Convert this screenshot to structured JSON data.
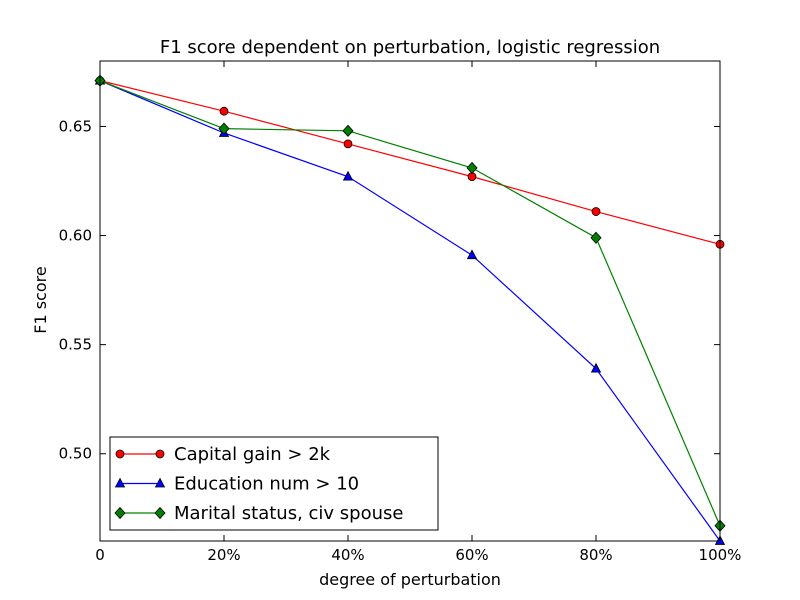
{
  "chart_data": {
    "type": "line",
    "title": "F1 score dependent on perturbation, logistic regression",
    "xlabel": "degree of perturbation",
    "ylabel": "F1 score",
    "x": [
      0,
      20,
      40,
      60,
      80,
      100
    ],
    "x_tick_labels": [
      "0",
      "20%",
      "40%",
      "60%",
      "80%",
      "100%"
    ],
    "xlim": [
      0,
      100
    ],
    "y_ticks": [
      0.5,
      0.55,
      0.6,
      0.65
    ],
    "y_tick_labels": [
      "0.50",
      "0.55",
      "0.60",
      "0.65"
    ],
    "ylim": [
      0.46,
      0.68
    ],
    "grid": false,
    "legend_position": "lower-left",
    "series": [
      {
        "name": "Capital gain > 2k",
        "color": "#ff0000",
        "marker": "circle",
        "values": [
          0.671,
          0.657,
          0.642,
          0.627,
          0.611,
          0.596
        ]
      },
      {
        "name": "Education num > 10",
        "color": "#0000ff",
        "marker": "triangle",
        "values": [
          0.671,
          0.647,
          0.627,
          0.591,
          0.539,
          0.46
        ]
      },
      {
        "name": "Marital status, civ spouse",
        "color": "#008000",
        "marker": "diamond",
        "values": [
          0.671,
          0.649,
          0.648,
          0.631,
          0.599,
          0.467
        ]
      }
    ]
  }
}
